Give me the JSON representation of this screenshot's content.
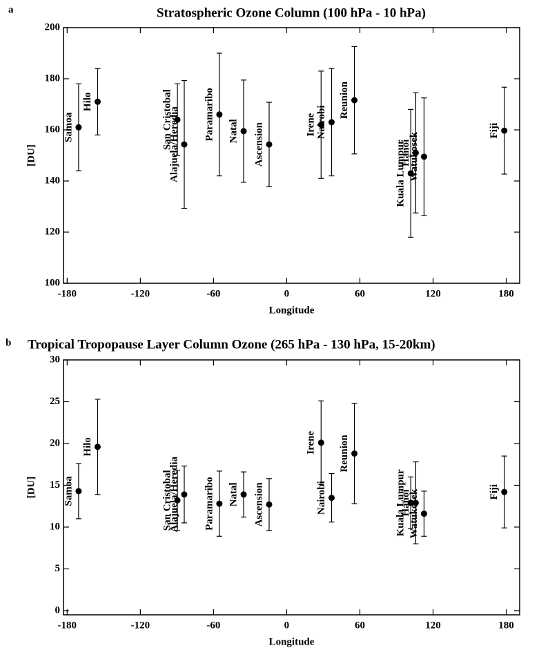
{
  "chart_data": [
    {
      "type": "errorbar",
      "panel_label": "a",
      "title": "Stratospheric Ozone Column (100 hPa - 10 hPa)",
      "x_label": "Longitude",
      "y_label": "[DU]",
      "color": "#000000",
      "xlim": [
        -183,
        191
      ],
      "xticks": [
        -180,
        -120,
        -60,
        0,
        60,
        120,
        180
      ],
      "ylim": [
        100,
        200
      ],
      "yticks": [
        100,
        120,
        140,
        160,
        180,
        200
      ],
      "categories": [
        "Samoa",
        "Hilo",
        "San Cristobal",
        "Alajuela/Heredia",
        "Paramaribo",
        "Natal",
        "Ascension",
        "Irene",
        "Nairobi",
        "Reunion",
        "Kuala Lumpur",
        "Hanoi",
        "Watukosek",
        "Fiji"
      ],
      "x": [
        -170.6,
        -155,
        -89.6,
        -84,
        -55.2,
        -35.3,
        -14.4,
        28.2,
        36.8,
        55.5,
        101.7,
        105.8,
        112.6,
        178.4
      ],
      "values": [
        161,
        171,
        164,
        154.3,
        166,
        159.5,
        154.3,
        162,
        163,
        171.6,
        143,
        151,
        149.5,
        159.7
      ],
      "errors": [
        17,
        13,
        14,
        25,
        24,
        20,
        16.5,
        21,
        21,
        21,
        25,
        23.5,
        23,
        17
      ]
    },
    {
      "type": "errorbar",
      "panel_label": "b",
      "title": "Tropical Tropopause Layer Column Ozone (265 hPa - 130 hPa, 15-20km)",
      "x_label": "Longitude",
      "y_label": "[DU]",
      "color": "#000000",
      "xlim": [
        -183,
        191
      ],
      "xticks": [
        -180,
        -120,
        -60,
        0,
        60,
        120,
        180
      ],
      "ylim": [
        -0.5,
        30
      ],
      "yticks": [
        0,
        5,
        10,
        15,
        20,
        25,
        30
      ],
      "categories": [
        "Samoa",
        "Hilo",
        "San Cristobal",
        "Alajuela/Heredia",
        "Paramaribo",
        "Natal",
        "Ascension",
        "Irene",
        "Nairobi",
        "Reunion",
        "Kuala Lumpur",
        "Hanoi",
        "Watukosek",
        "Fiji"
      ],
      "x": [
        -170.6,
        -155,
        -89.6,
        -84,
        -55.2,
        -35.3,
        -14.4,
        28.2,
        36.8,
        55.5,
        101.7,
        105.8,
        112.6,
        178.4
      ],
      "values": [
        14.3,
        19.6,
        13.2,
        13.9,
        12.8,
        13.9,
        12.7,
        20.1,
        13.5,
        18.8,
        12.9,
        12.9,
        11.6,
        14.2
      ],
      "errors": [
        3.3,
        5.7,
        3.6,
        3.4,
        3.9,
        2.7,
        3.1,
        5,
        2.9,
        6,
        3.1,
        4.9,
        2.7,
        4.3
      ]
    }
  ]
}
